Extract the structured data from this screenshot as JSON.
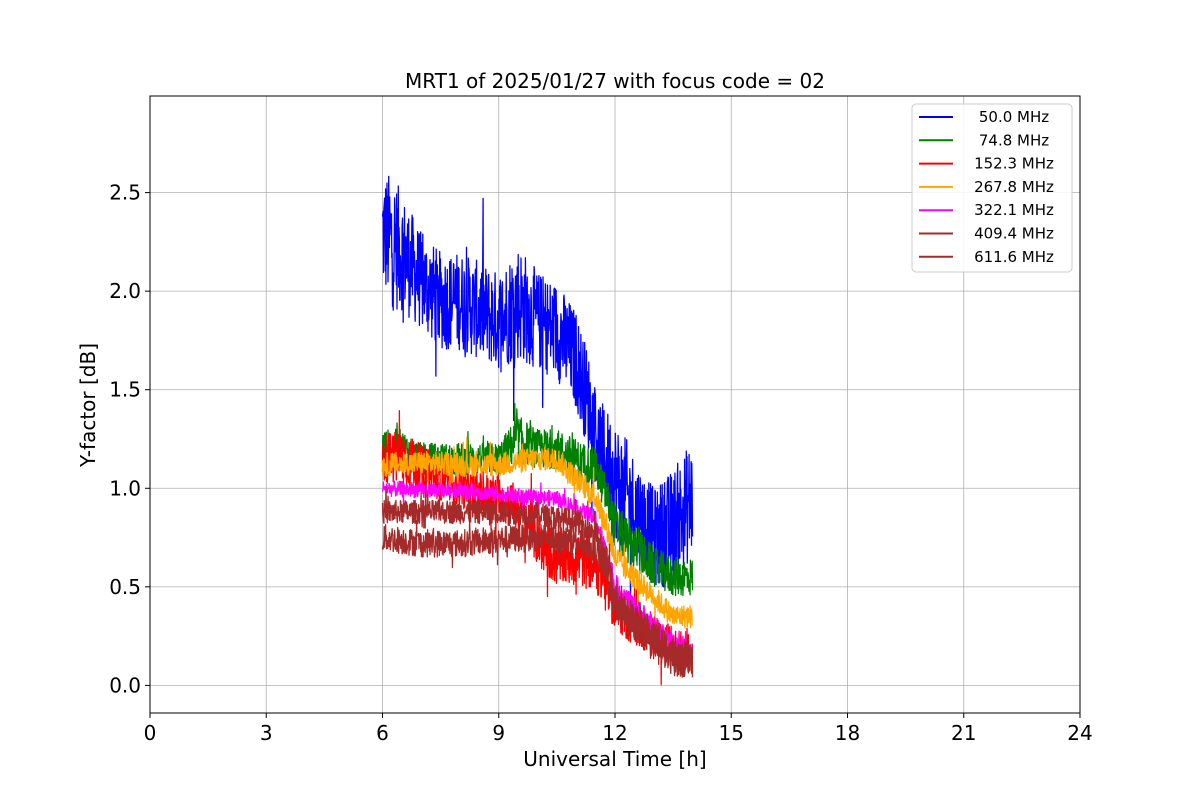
{
  "chart_data": {
    "type": "line",
    "title": "MRT1 of 2025/01/27 with focus code = 02",
    "xlabel": "Universal Time [h]",
    "ylabel": "Y-factor [dB]",
    "xlim": [
      0,
      24
    ],
    "ylim": [
      -0.14,
      2.99
    ],
    "xticks": [
      0,
      3,
      6,
      9,
      12,
      15,
      18,
      21,
      24
    ],
    "yticks": [
      0.0,
      0.5,
      1.0,
      1.5,
      2.0,
      2.5
    ],
    "xtick_labels": [
      "0",
      "3",
      "6",
      "9",
      "12",
      "15",
      "18",
      "21",
      "24"
    ],
    "ytick_labels": [
      "0.0",
      "0.5",
      "1.0",
      "1.5",
      "2.0",
      "2.5"
    ],
    "grid": true,
    "legend_position": "top-right",
    "series": [
      {
        "name": " 50.0 MHz",
        "color": "#0000ff",
        "x": [
          6.0,
          6.25,
          6.5,
          7.0,
          7.5,
          8.0,
          8.5,
          9.0,
          9.5,
          10.0,
          10.5,
          11.0,
          11.3,
          11.6,
          12.0,
          12.3,
          12.7,
          13.0,
          13.5,
          14.0
        ],
        "mean": [
          2.3,
          2.25,
          2.2,
          2.05,
          1.95,
          1.95,
          1.9,
          1.85,
          1.95,
          1.85,
          1.8,
          1.65,
          1.45,
          1.2,
          1.05,
          0.95,
          0.85,
          0.75,
          0.8,
          0.95
        ],
        "spread": [
          0.3,
          0.35,
          0.3,
          0.25,
          0.25,
          0.25,
          0.25,
          0.25,
          0.3,
          0.25,
          0.25,
          0.25,
          0.25,
          0.25,
          0.3,
          0.3,
          0.25,
          0.25,
          0.3,
          0.3
        ]
      },
      {
        "name": " 74.8 MHz",
        "color": "#008000",
        "x": [
          6.0,
          6.5,
          7.0,
          8.0,
          9.0,
          9.5,
          10.0,
          10.5,
          11.0,
          11.5,
          11.8,
          12.0,
          12.5,
          13.0,
          13.5,
          14.0
        ],
        "mean": [
          1.2,
          1.2,
          1.15,
          1.15,
          1.15,
          1.25,
          1.2,
          1.2,
          1.15,
          1.1,
          0.95,
          0.8,
          0.7,
          0.6,
          0.55,
          0.55
        ],
        "spread": [
          0.1,
          0.1,
          0.08,
          0.08,
          0.08,
          0.12,
          0.1,
          0.1,
          0.1,
          0.1,
          0.1,
          0.12,
          0.12,
          0.1,
          0.1,
          0.1
        ]
      },
      {
        "name": "152.3 MHz",
        "color": "#ff0000",
        "x": [
          6.0,
          6.5,
          7.0,
          8.0,
          9.0,
          9.5,
          10.0,
          10.5,
          11.0,
          11.5,
          11.8,
          12.0,
          12.5,
          13.0,
          13.5,
          14.0
        ],
        "mean": [
          1.15,
          1.15,
          1.1,
          1.0,
          0.95,
          0.9,
          0.75,
          0.65,
          0.65,
          0.6,
          0.5,
          0.4,
          0.3,
          0.25,
          0.2,
          0.15
        ],
        "spread": [
          0.12,
          0.15,
          0.12,
          0.1,
          0.12,
          0.12,
          0.15,
          0.15,
          0.15,
          0.12,
          0.15,
          0.12,
          0.1,
          0.1,
          0.1,
          0.1
        ]
      },
      {
        "name": "267.8 MHz",
        "color": "#ffa500",
        "x": [
          6.0,
          7.0,
          8.0,
          9.0,
          10.0,
          10.5,
          11.0,
          11.5,
          11.8,
          12.0,
          12.5,
          13.0,
          13.5,
          14.0
        ],
        "mean": [
          1.12,
          1.13,
          1.12,
          1.12,
          1.15,
          1.15,
          1.05,
          0.95,
          0.8,
          0.65,
          0.55,
          0.45,
          0.35,
          0.35
        ],
        "spread": [
          0.06,
          0.06,
          0.06,
          0.06,
          0.06,
          0.06,
          0.06,
          0.06,
          0.07,
          0.07,
          0.06,
          0.06,
          0.06,
          0.06
        ]
      },
      {
        "name": "322.1 MHz",
        "color": "#ff00ff",
        "x": [
          6.0,
          7.0,
          8.0,
          9.0,
          10.0,
          10.5,
          11.0,
          11.5,
          11.8,
          12.0,
          12.5,
          13.0,
          13.5,
          14.0
        ],
        "mean": [
          1.0,
          0.99,
          0.99,
          0.97,
          0.95,
          0.95,
          0.9,
          0.85,
          0.65,
          0.5,
          0.4,
          0.3,
          0.22,
          0.18
        ],
        "spread": [
          0.04,
          0.04,
          0.04,
          0.04,
          0.04,
          0.04,
          0.04,
          0.04,
          0.06,
          0.06,
          0.05,
          0.05,
          0.05,
          0.05
        ]
      },
      {
        "name": "409.4 MHz",
        "color": "#a52a2a",
        "x": [
          6.0,
          7.0,
          8.0,
          9.0,
          10.0,
          11.0,
          11.5,
          11.8,
          12.0,
          12.5,
          13.0,
          13.5,
          14.0
        ],
        "mean": [
          0.88,
          0.88,
          0.88,
          0.88,
          0.87,
          0.83,
          0.78,
          0.62,
          0.45,
          0.35,
          0.25,
          0.17,
          0.15
        ],
        "spread": [
          0.06,
          0.06,
          0.06,
          0.06,
          0.06,
          0.06,
          0.06,
          0.08,
          0.08,
          0.07,
          0.07,
          0.07,
          0.07
        ]
      },
      {
        "name": "611.6 MHz",
        "color": "#a52a2a",
        "x": [
          6.0,
          7.0,
          8.0,
          9.0,
          10.0,
          11.0,
          11.5,
          11.8,
          12.0,
          12.5,
          13.0,
          13.5,
          14.0
        ],
        "mean": [
          0.75,
          0.72,
          0.72,
          0.74,
          0.75,
          0.73,
          0.7,
          0.55,
          0.4,
          0.3,
          0.2,
          0.12,
          0.1
        ],
        "spread": [
          0.07,
          0.07,
          0.07,
          0.07,
          0.07,
          0.07,
          0.07,
          0.08,
          0.08,
          0.07,
          0.07,
          0.07,
          0.07
        ]
      }
    ]
  }
}
